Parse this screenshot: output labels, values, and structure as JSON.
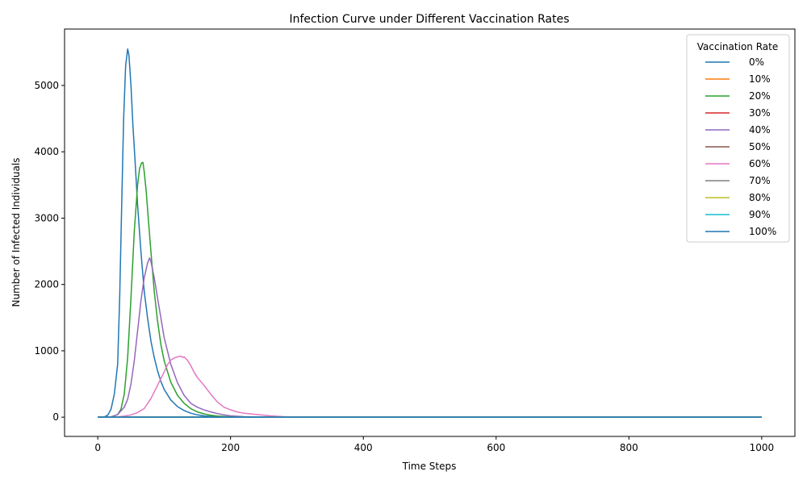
{
  "chart_data": {
    "type": "line",
    "title": "Infection Curve under Different Vaccination Rates",
    "xlabel": "Time Steps",
    "ylabel": "Number of Infected Individuals",
    "xlim": [
      -50,
      1050
    ],
    "ylim": [
      -290,
      5850
    ],
    "xticks": [
      0,
      200,
      400,
      600,
      800,
      1000
    ],
    "yticks": [
      0,
      1000,
      2000,
      3000,
      4000,
      5000
    ],
    "grid": false,
    "legend": {
      "title": "Vaccination Rate",
      "placement": "top-right"
    },
    "series": [
      {
        "name": "0%",
        "color": "#1f77b4",
        "x": [
          0,
          10,
          15,
          20,
          25,
          30,
          33,
          36,
          39,
          42,
          45,
          47,
          50,
          53,
          56,
          60,
          65,
          70,
          75,
          80,
          85,
          90,
          95,
          100,
          110,
          120,
          130,
          140,
          150,
          160,
          180,
          200,
          250,
          300,
          400,
          600,
          800,
          1000
        ],
        "y": [
          0,
          5,
          30,
          120,
          350,
          800,
          1800,
          3200,
          4500,
          5300,
          5550,
          5450,
          5000,
          4400,
          3900,
          3200,
          2500,
          1900,
          1500,
          1150,
          900,
          700,
          540,
          420,
          260,
          160,
          100,
          60,
          35,
          20,
          8,
          3,
          0,
          0,
          0,
          0,
          0,
          0
        ]
      },
      {
        "name": "10%",
        "color": "#ff7f0e",
        "x": [
          0,
          1000
        ],
        "y": [
          0,
          0
        ]
      },
      {
        "name": "20%",
        "color": "#2ca02c",
        "x": [
          0,
          20,
          30,
          35,
          40,
          45,
          50,
          55,
          60,
          63,
          66,
          68,
          70,
          73,
          76,
          80,
          85,
          90,
          95,
          100,
          110,
          120,
          130,
          140,
          150,
          160,
          170,
          180,
          200,
          250,
          300,
          1000
        ],
        "y": [
          0,
          5,
          40,
          120,
          350,
          900,
          1800,
          2800,
          3500,
          3750,
          3830,
          3840,
          3700,
          3400,
          3000,
          2500,
          1900,
          1450,
          1100,
          850,
          530,
          330,
          210,
          130,
          80,
          50,
          30,
          18,
          6,
          0,
          0,
          0
        ]
      },
      {
        "name": "30%",
        "color": "#d62728",
        "x": [
          0,
          1000
        ],
        "y": [
          0,
          0
        ]
      },
      {
        "name": "40%",
        "color": "#9467bd",
        "x": [
          0,
          20,
          30,
          40,
          45,
          50,
          55,
          60,
          65,
          70,
          75,
          78,
          80,
          85,
          90,
          95,
          100,
          110,
          120,
          130,
          140,
          150,
          160,
          170,
          180,
          190,
          200,
          220,
          250,
          300,
          1000
        ],
        "y": [
          0,
          3,
          40,
          150,
          270,
          500,
          850,
          1300,
          1750,
          2100,
          2320,
          2400,
          2350,
          2100,
          1800,
          1500,
          1200,
          800,
          520,
          330,
          210,
          150,
          110,
          80,
          55,
          35,
          20,
          8,
          2,
          0,
          0
        ]
      },
      {
        "name": "50%",
        "color": "#8c564b",
        "x": [
          0,
          1000
        ],
        "y": [
          0,
          0
        ]
      },
      {
        "name": "60%",
        "color": "#e377c2",
        "x": [
          0,
          30,
          40,
          50,
          60,
          70,
          80,
          90,
          100,
          105,
          110,
          115,
          120,
          125,
          128,
          130,
          135,
          140,
          145,
          150,
          160,
          170,
          180,
          190,
          200,
          210,
          220,
          240,
          260,
          280,
          300,
          1000
        ],
        "y": [
          0,
          5,
          15,
          35,
          70,
          130,
          280,
          480,
          680,
          790,
          860,
          890,
          910,
          920,
          900,
          910,
          860,
          780,
          680,
          600,
          480,
          350,
          230,
          150,
          110,
          80,
          60,
          40,
          20,
          8,
          2,
          0
        ]
      },
      {
        "name": "70%",
        "color": "#7f7f7f",
        "x": [
          0,
          1000
        ],
        "y": [
          0,
          0
        ]
      },
      {
        "name": "80%",
        "color": "#bcbd22",
        "x": [
          0,
          1000
        ],
        "y": [
          0,
          0
        ]
      },
      {
        "name": "90%",
        "color": "#17becf",
        "x": [
          0,
          1000
        ],
        "y": [
          0,
          0
        ]
      },
      {
        "name": "100%",
        "color": "#1f77b4",
        "x": [
          0,
          1000
        ],
        "y": [
          0,
          0
        ]
      }
    ]
  }
}
